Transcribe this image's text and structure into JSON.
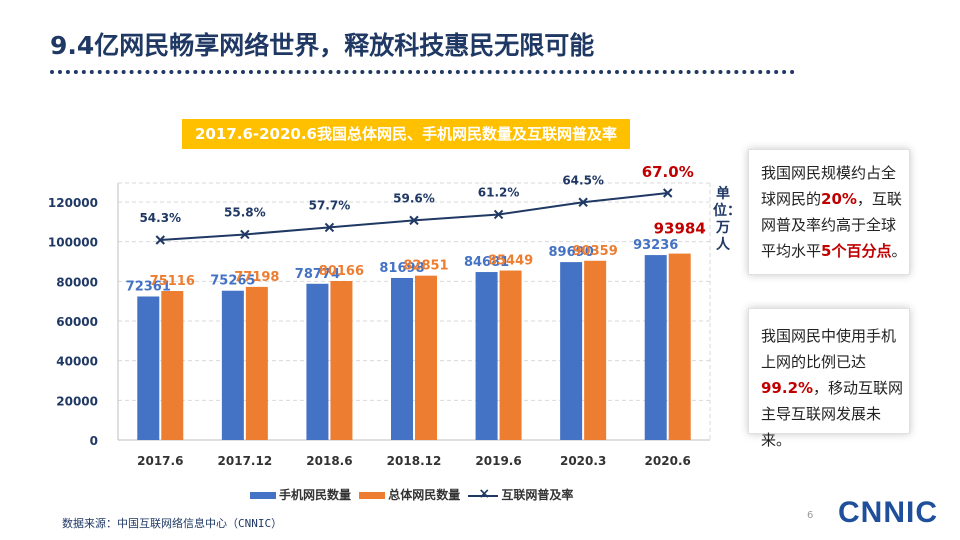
{
  "slide": {
    "title": "9.4亿网民畅享网络世界，释放科技惠民无限可能",
    "source": "数据来源：中国互联网络信息中心（CNNIC）",
    "page_number": "6",
    "logo": "CNNIC"
  },
  "unit_label": "单位：万人",
  "cards": {
    "card1": {
      "t1": "我国网民规模约占全球网民的",
      "h1": "20%",
      "t2": "，互联网普及率约高于全球平均水平",
      "h2": "5个百分点",
      "t3": "。"
    },
    "card2": {
      "t1": "我国网民中使用手机上网的比例已达",
      "h1": "99.2%",
      "t2": "，移动互联网主导互联网发展未来。"
    }
  },
  "colors": {
    "mobile": "#4472c4",
    "total": "#ed7d31",
    "rate": "#1f3864",
    "highlight": "#c00000"
  },
  "chart_data": {
    "type": "bar",
    "title": "2017.6-2020.6我国总体网民、手机网民数量及互联网普及率",
    "categories": [
      "2017.6",
      "2017.12",
      "2018.6",
      "2018.12",
      "2019.6",
      "2020.3",
      "2020.6"
    ],
    "series": [
      {
        "name": "手机网民数量",
        "type": "bar",
        "values": [
          72361,
          75265,
          78774,
          81698,
          84681,
          89690,
          93236
        ]
      },
      {
        "name": "总体网民数量",
        "type": "bar",
        "values": [
          75116,
          77198,
          80166,
          82851,
          85449,
          90359,
          93984
        ]
      },
      {
        "name": "互联网普及率",
        "type": "line",
        "values": [
          54.3,
          55.8,
          57.7,
          59.6,
          61.2,
          64.5,
          67.0
        ],
        "labels": [
          "54.3%",
          "55.8%",
          "57.7%",
          "59.6%",
          "61.2%",
          "64.5%",
          "67.0%"
        ]
      }
    ],
    "y_ticks": [
      "0",
      "20000",
      "40000",
      "60000",
      "80000",
      "100000",
      "120000"
    ],
    "ylim": [
      0,
      130000
    ],
    "rate_range": [
      50,
      70
    ],
    "legend": [
      "手机网民数量",
      "总体网民数量",
      "互联网普及率"
    ]
  }
}
